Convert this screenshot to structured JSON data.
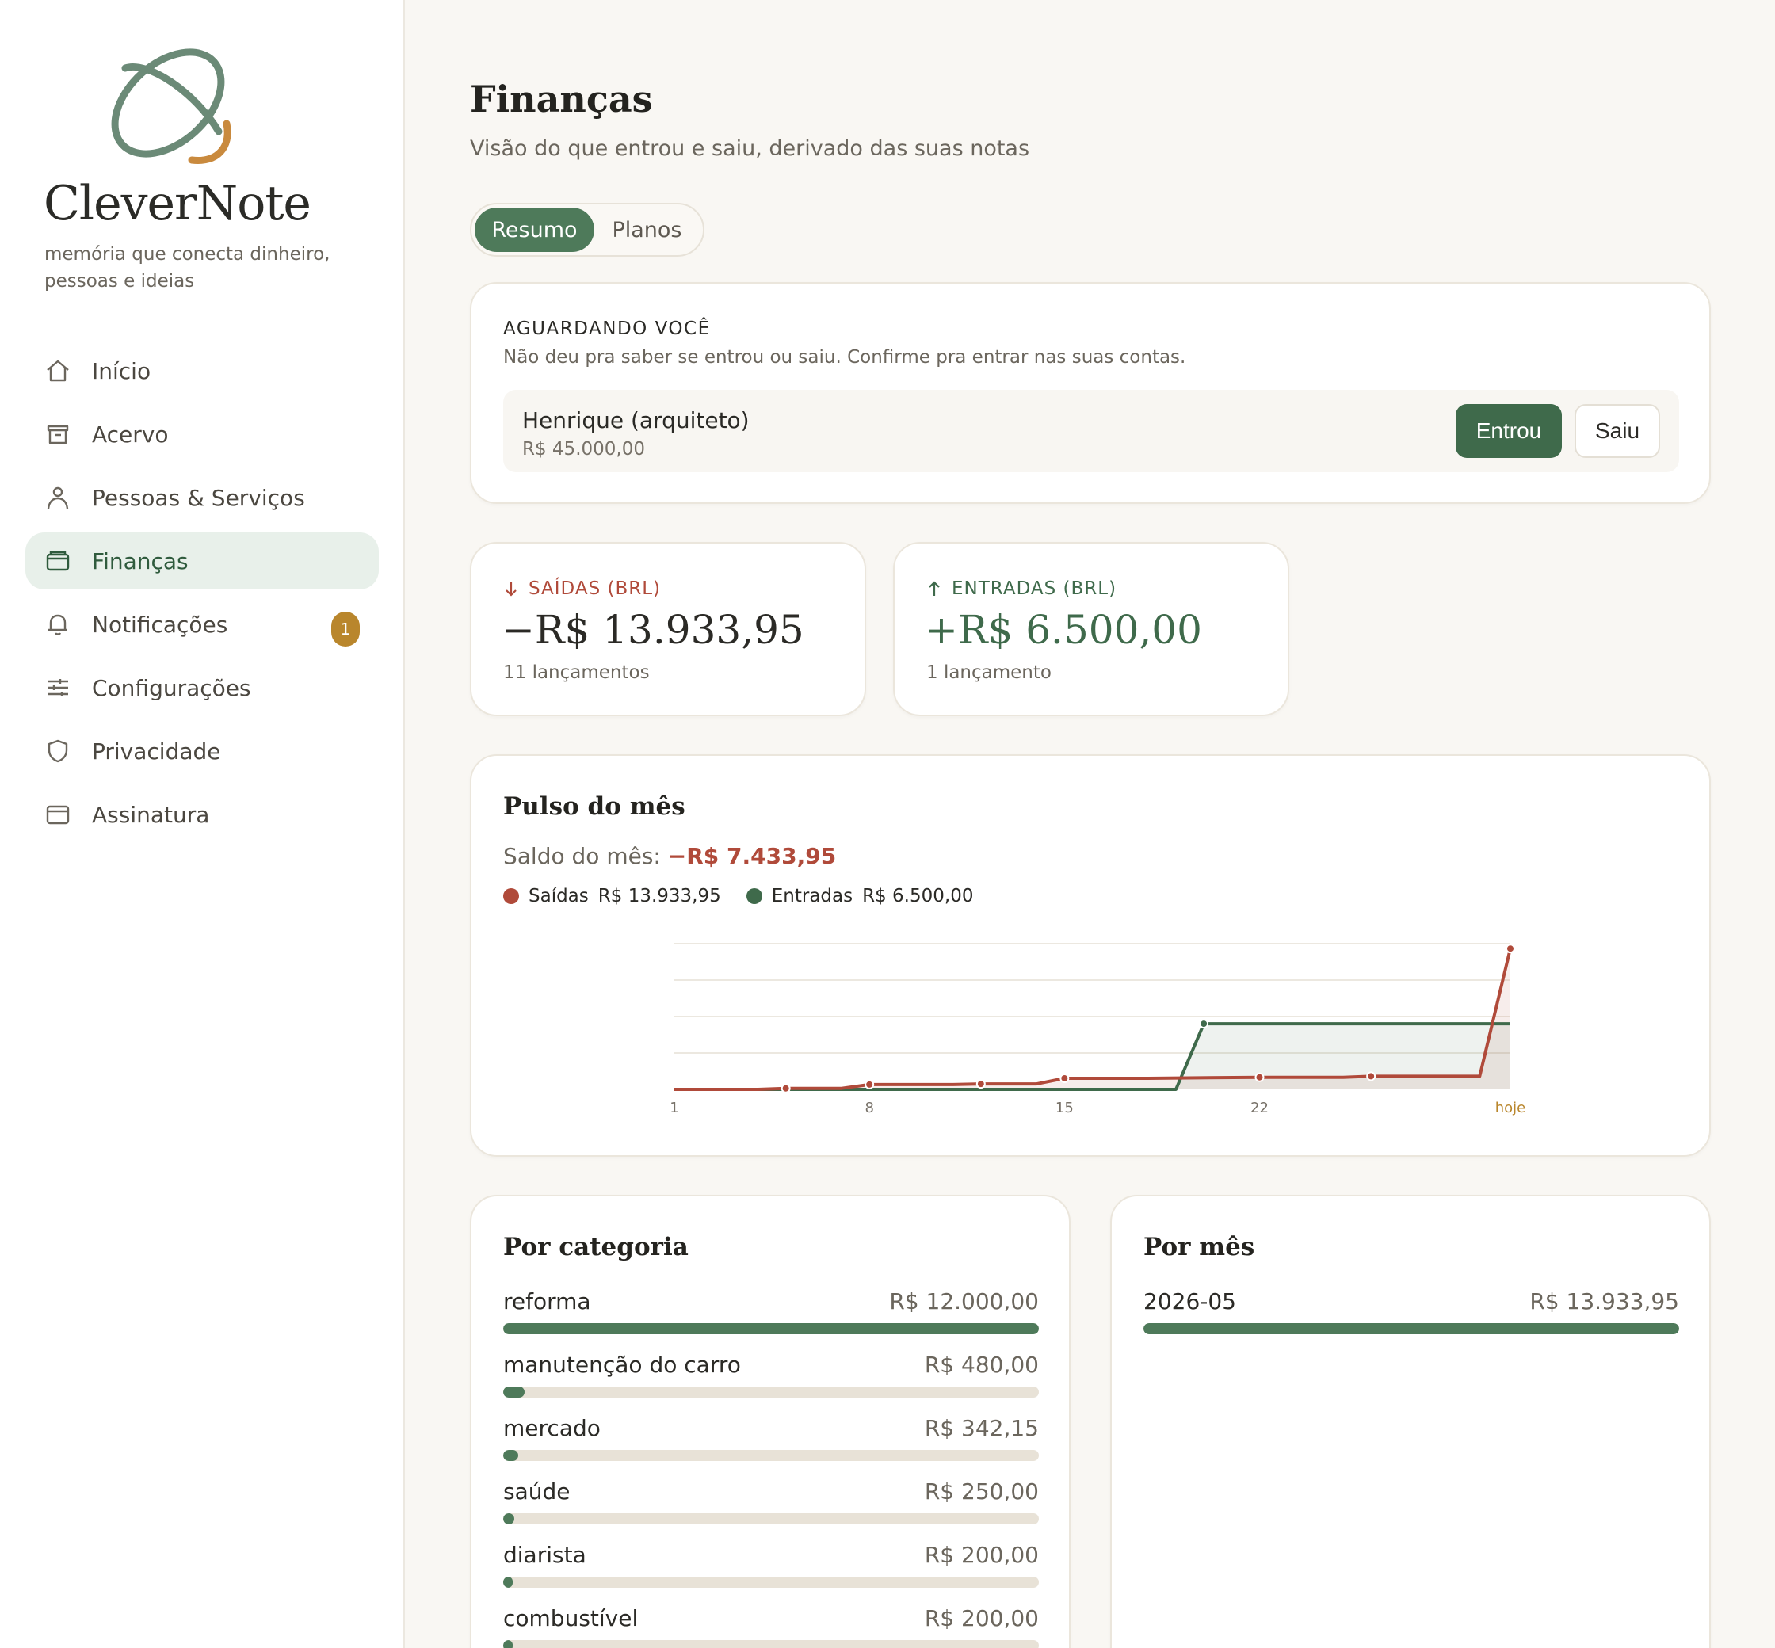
{
  "brand": {
    "name": "CleverNote",
    "tagline": "memória que conecta dinheiro, pessoas e ideias"
  },
  "nav": {
    "items": [
      {
        "label": "Início",
        "icon": "home-icon"
      },
      {
        "label": "Acervo",
        "icon": "archive-icon"
      },
      {
        "label": "Pessoas & Serviços",
        "icon": "person-icon"
      },
      {
        "label": "Finanças",
        "icon": "wallet-icon",
        "active": true
      },
      {
        "label": "Notificações",
        "icon": "bell-icon",
        "badge": "1"
      },
      {
        "label": "Configurações",
        "icon": "sliders-icon"
      },
      {
        "label": "Privacidade",
        "icon": "shield-icon"
      },
      {
        "label": "Assinatura",
        "icon": "card-icon"
      }
    ]
  },
  "header": {
    "title": "Finanças",
    "subtitle": "Visão do que entrou e saiu, derivado das suas notas"
  },
  "tabs": [
    {
      "label": "Resumo",
      "active": true
    },
    {
      "label": "Planos",
      "active": false
    }
  ],
  "pending": {
    "title": "AGUARDANDO VOCÊ",
    "description": "Não deu pra saber se entrou ou saiu. Confirme pra entrar nas suas contas.",
    "item": {
      "name": "Henrique (arquiteto)",
      "amount": "R$ 45.000,00",
      "in_label": "Entrou",
      "out_label": "Saiu"
    }
  },
  "kpis": {
    "out": {
      "label": "SAÍDAS (BRL)",
      "value": "−R$ 13.933,95",
      "count": "11 lançamentos"
    },
    "in": {
      "label": "ENTRADAS (BRL)",
      "value": "+R$ 6.500,00",
      "count": "1 lançamento"
    }
  },
  "pulse": {
    "title": "Pulso do mês",
    "balance_label": "Saldo do mês:",
    "balance_value": "−R$ 7.433,95",
    "legend": [
      {
        "name": "Saídas",
        "value": "R$ 13.933,95",
        "color": "#b04a3a"
      },
      {
        "name": "Entradas",
        "value": "R$ 6.500,00",
        "color": "#3f6a4b"
      }
    ]
  },
  "chart_data": {
    "type": "line",
    "title": "Pulso do mês",
    "x_ticks": [
      "1",
      "8",
      "15",
      "22",
      "hoje"
    ],
    "x_range": [
      1,
      31
    ],
    "y_range": [
      0,
      14500
    ],
    "grid": true,
    "legend_position": "top-left",
    "series": [
      {
        "name": "Saídas",
        "color": "#b04a3a",
        "points": [
          [
            1,
            0
          ],
          [
            4,
            0
          ],
          [
            5,
            100
          ],
          [
            7,
            100
          ],
          [
            8,
            480
          ],
          [
            11,
            480
          ],
          [
            12,
            540
          ],
          [
            14,
            540
          ],
          [
            15,
            1100
          ],
          [
            18,
            1100
          ],
          [
            22,
            1200
          ],
          [
            25,
            1200
          ],
          [
            26,
            1300
          ],
          [
            29.9,
            1300
          ],
          [
            31,
            13933.95
          ]
        ],
        "markers_at": [
          5,
          8,
          12,
          15,
          22,
          26,
          31
        ]
      },
      {
        "name": "Entradas",
        "color": "#3f6a4b",
        "points": [
          [
            1,
            0
          ],
          [
            19,
            0
          ],
          [
            20,
            6500
          ],
          [
            31,
            6500
          ]
        ],
        "markers_at": [
          20
        ]
      }
    ]
  },
  "categories": {
    "title": "Por categoria",
    "items": [
      {
        "name": "reforma",
        "value": "R$ 12.000,00",
        "fraction": 1.0
      },
      {
        "name": "manutenção do carro",
        "value": "R$ 480,00",
        "fraction": 0.04
      },
      {
        "name": "mercado",
        "value": "R$ 342,15",
        "fraction": 0.0285
      },
      {
        "name": "saúde",
        "value": "R$ 250,00",
        "fraction": 0.021
      },
      {
        "name": "diarista",
        "value": "R$ 200,00",
        "fraction": 0.017
      },
      {
        "name": "combustível",
        "value": "R$ 200,00",
        "fraction": 0.017
      }
    ]
  },
  "months": {
    "title": "Por mês",
    "items": [
      {
        "name": "2026-05",
        "value": "R$ 13.933,95",
        "fraction": 1.0
      }
    ]
  }
}
